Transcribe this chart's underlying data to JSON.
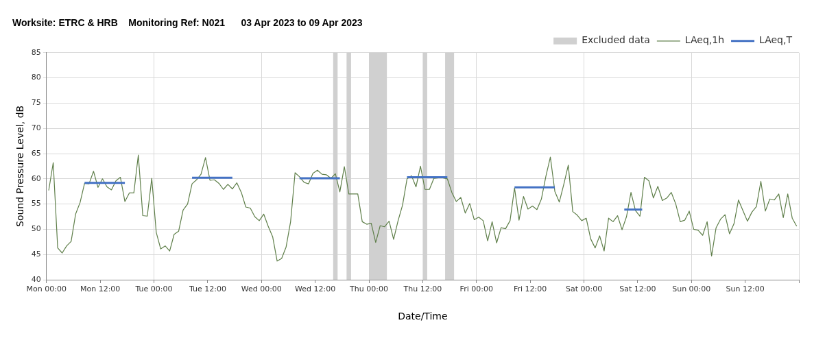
{
  "chart_data": {
    "type": "line",
    "title": "Worksite: ETRC & HRB    Monitoring Ref: N021      03 Apr 2023 to 09 Apr 2023",
    "xlabel": "Date/Time",
    "ylabel": "Sound Pressure Level, dB",
    "xlim": [
      "2023-04-03T00:00",
      "2023-04-10T00:00"
    ],
    "xticks": [
      {
        "value": "2023-04-03T00:00",
        "label": "Mon 00:00"
      },
      {
        "value": "2023-04-03T12:00",
        "label": "Mon 12:00"
      },
      {
        "value": "2023-04-04T00:00",
        "label": "Tue 00:00"
      },
      {
        "value": "2023-04-04T12:00",
        "label": "Tue 12:00"
      },
      {
        "value": "2023-04-05T00:00",
        "label": "Wed 00:00"
      },
      {
        "value": "2023-04-05T12:00",
        "label": "Wed 12:00"
      },
      {
        "value": "2023-04-06T00:00",
        "label": "Thu 00:00"
      },
      {
        "value": "2023-04-06T12:00",
        "label": "Thu 12:00"
      },
      {
        "value": "2023-04-07T00:00",
        "label": "Fri 00:00"
      },
      {
        "value": "2023-04-07T12:00",
        "label": "Fri 12:00"
      },
      {
        "value": "2023-04-08T00:00",
        "label": "Sat 00:00"
      },
      {
        "value": "2023-04-08T12:00",
        "label": "Sat 12:00"
      },
      {
        "value": "2023-04-09T00:00",
        "label": "Sun 00:00"
      },
      {
        "value": "2023-04-09T12:00",
        "label": "Sun 12:00"
      },
      {
        "value": "2023-04-10T00:00",
        "label": null
      }
    ],
    "ylim": [
      40,
      85
    ],
    "yticks": [
      40,
      45,
      50,
      55,
      60,
      65,
      70,
      75,
      80,
      85
    ],
    "grid": true,
    "legend": "top right",
    "marker": "none",
    "line_style": "solid",
    "bands": [
      {
        "axis": "x",
        "from": "2023-04-05T16:00",
        "to": "2023-04-05T17:00",
        "color": "#d0d0d0",
        "label": "Excluded data"
      },
      {
        "axis": "x",
        "from": "2023-04-05T19:00",
        "to": "2023-04-05T20:00",
        "color": "#d0d0d0"
      },
      {
        "axis": "x",
        "from": "2023-04-06T00:00",
        "to": "2023-04-06T04:00",
        "color": "#d0d0d0"
      },
      {
        "axis": "x",
        "from": "2023-04-06T12:00",
        "to": "2023-04-06T13:00",
        "color": "#d0d0d0"
      },
      {
        "axis": "x",
        "from": "2023-04-06T17:00",
        "to": "2023-04-06T19:00",
        "color": "#d0d0d0"
      }
    ],
    "series": [
      {
        "name": "LAeq,1h",
        "type": "line",
        "color": "#5f7f4a",
        "x": [
          "2023-04-03T00:30",
          "2023-04-03T01:30",
          "2023-04-03T02:30",
          "2023-04-03T03:30",
          "2023-04-03T04:30",
          "2023-04-03T05:30",
          "2023-04-03T06:30",
          "2023-04-03T07:30",
          "2023-04-03T08:30",
          "2023-04-03T09:30",
          "2023-04-03T10:30",
          "2023-04-03T11:30",
          "2023-04-03T12:30",
          "2023-04-03T13:30",
          "2023-04-03T14:30",
          "2023-04-03T15:30",
          "2023-04-03T16:30",
          "2023-04-03T17:30",
          "2023-04-03T18:30",
          "2023-04-03T19:30",
          "2023-04-03T20:30",
          "2023-04-03T21:30",
          "2023-04-03T22:30",
          "2023-04-03T23:30",
          "2023-04-04T00:30",
          "2023-04-04T01:30",
          "2023-04-04T02:30",
          "2023-04-04T03:30",
          "2023-04-04T04:30",
          "2023-04-04T05:30",
          "2023-04-04T06:30",
          "2023-04-04T07:30",
          "2023-04-04T08:30",
          "2023-04-04T09:30",
          "2023-04-04T10:30",
          "2023-04-04T11:30",
          "2023-04-04T12:30",
          "2023-04-04T13:30",
          "2023-04-04T14:30",
          "2023-04-04T15:30",
          "2023-04-04T16:30",
          "2023-04-04T17:30",
          "2023-04-04T18:30",
          "2023-04-04T19:30",
          "2023-04-04T20:30",
          "2023-04-04T21:30",
          "2023-04-04T22:30",
          "2023-04-04T23:30",
          "2023-04-05T00:30",
          "2023-04-05T01:30",
          "2023-04-05T02:30",
          "2023-04-05T03:30",
          "2023-04-05T04:30",
          "2023-04-05T05:30",
          "2023-04-05T06:30",
          "2023-04-05T07:30",
          "2023-04-05T08:30",
          "2023-04-05T09:30",
          "2023-04-05T10:30",
          "2023-04-05T11:30",
          "2023-04-05T12:30",
          "2023-04-05T13:30",
          "2023-04-05T14:30",
          "2023-04-05T15:30",
          "2023-04-05T16:30",
          "2023-04-05T17:30",
          "2023-04-05T18:30",
          "2023-04-05T19:30",
          "2023-04-05T20:30",
          "2023-04-05T21:30",
          "2023-04-05T22:30",
          "2023-04-05T23:30",
          "2023-04-06T00:30",
          "2023-04-06T01:30",
          "2023-04-06T02:30",
          "2023-04-06T03:30",
          "2023-04-06T04:30",
          "2023-04-06T05:30",
          "2023-04-06T06:30",
          "2023-04-06T07:30",
          "2023-04-06T08:30",
          "2023-04-06T09:30",
          "2023-04-06T10:30",
          "2023-04-06T11:30",
          "2023-04-06T12:30",
          "2023-04-06T13:30",
          "2023-04-06T14:30",
          "2023-04-06T15:30",
          "2023-04-06T16:30",
          "2023-04-06T17:30",
          "2023-04-06T18:30",
          "2023-04-06T19:30",
          "2023-04-06T20:30",
          "2023-04-06T21:30",
          "2023-04-06T22:30",
          "2023-04-06T23:30",
          "2023-04-07T00:30",
          "2023-04-07T01:30",
          "2023-04-07T02:30",
          "2023-04-07T03:30",
          "2023-04-07T04:30",
          "2023-04-07T05:30",
          "2023-04-07T06:30",
          "2023-04-07T07:30",
          "2023-04-07T08:30",
          "2023-04-07T09:30",
          "2023-04-07T10:30",
          "2023-04-07T11:30",
          "2023-04-07T12:30",
          "2023-04-07T13:30",
          "2023-04-07T14:30",
          "2023-04-07T15:30",
          "2023-04-07T16:30",
          "2023-04-07T17:30",
          "2023-04-07T18:30",
          "2023-04-07T19:30",
          "2023-04-07T20:30",
          "2023-04-07T21:30",
          "2023-04-07T22:30",
          "2023-04-07T23:30",
          "2023-04-08T00:30",
          "2023-04-08T01:30",
          "2023-04-08T02:30",
          "2023-04-08T03:30",
          "2023-04-08T04:30",
          "2023-04-08T05:30",
          "2023-04-08T06:30",
          "2023-04-08T07:30",
          "2023-04-08T08:30",
          "2023-04-08T09:30",
          "2023-04-08T10:30",
          "2023-04-08T11:30",
          "2023-04-08T12:30",
          "2023-04-08T13:30",
          "2023-04-08T14:30",
          "2023-04-08T15:30",
          "2023-04-08T16:30",
          "2023-04-08T17:30",
          "2023-04-08T18:30",
          "2023-04-08T19:30",
          "2023-04-08T20:30",
          "2023-04-08T21:30",
          "2023-04-08T22:30",
          "2023-04-08T23:30",
          "2023-04-09T00:30",
          "2023-04-09T01:30",
          "2023-04-09T02:30",
          "2023-04-09T03:30",
          "2023-04-09T04:30",
          "2023-04-09T05:30",
          "2023-04-09T06:30",
          "2023-04-09T07:30",
          "2023-04-09T08:30",
          "2023-04-09T09:30",
          "2023-04-09T10:30",
          "2023-04-09T11:30",
          "2023-04-09T12:30",
          "2023-04-09T13:30",
          "2023-04-09T14:30",
          "2023-04-09T15:30",
          "2023-04-09T16:30",
          "2023-04-09T17:30",
          "2023-04-09T18:30",
          "2023-04-09T19:30",
          "2023-04-09T20:30",
          "2023-04-09T21:30",
          "2023-04-09T22:30",
          "2023-04-09T23:30"
        ],
        "values": [
          57.7,
          63.2,
          46.3,
          45.3,
          46.7,
          47.6,
          53.0,
          55.3,
          59.1,
          59.0,
          61.5,
          58.3,
          60.0,
          58.4,
          57.8,
          59.6,
          60.3,
          55.5,
          57.2,
          57.2,
          64.7,
          52.7,
          52.6,
          60.1,
          49.4,
          46.1,
          46.7,
          45.7,
          49.0,
          49.6,
          53.8,
          55.0,
          59.0,
          59.8,
          60.9,
          64.2,
          59.7,
          59.8,
          59.1,
          57.9,
          58.9,
          58.0,
          59.2,
          57.3,
          54.4,
          54.2,
          52.5,
          51.7,
          53.0,
          50.6,
          48.5,
          43.7,
          44.2,
          46.5,
          51.5,
          61.2,
          60.4,
          59.3,
          59.0,
          61.1,
          61.7,
          60.9,
          60.8,
          60.1,
          61.0,
          57.4,
          62.4,
          57.0,
          57.0,
          57.0,
          51.5,
          51.0,
          51.2,
          47.4,
          50.7,
          50.5,
          51.6,
          48.0,
          51.7,
          54.8,
          60.0,
          60.6,
          58.4,
          62.5,
          57.9,
          57.9,
          60.1,
          60.2,
          60.2,
          60.0,
          57.3,
          55.5,
          56.3,
          53.2,
          55.1,
          51.9,
          52.4,
          51.7,
          47.7,
          51.5,
          47.3,
          50.3,
          50.1,
          51.7,
          58.2,
          51.8,
          56.5,
          54.0,
          54.6,
          53.9,
          56.0,
          60.5,
          64.3,
          57.5,
          55.4,
          58.9,
          62.7,
          53.5,
          52.8,
          51.7,
          52.2,
          48.1,
          46.3,
          48.7,
          45.7,
          52.2,
          51.5,
          52.7,
          49.9,
          52.5,
          57.3,
          53.7,
          52.6,
          60.3,
          59.6,
          56.2,
          58.5,
          55.7,
          56.2,
          57.3,
          55.0,
          51.5,
          51.8,
          53.6,
          50.0,
          49.8,
          48.8,
          51.5,
          44.7,
          50.3,
          52.0,
          52.9,
          49.1,
          51.1,
          55.8,
          53.7,
          51.6,
          53.4,
          54.5,
          59.5,
          53.6,
          56.0,
          55.8,
          57.0,
          52.3,
          57.0,
          52.2,
          50.6
        ]
      },
      {
        "name": "LAeq,T",
        "type": "line",
        "color": "#4472c4",
        "x": [
          "2023-04-03T08:30",
          "2023-04-03T17:30"
        ],
        "values": [
          59.2,
          59.2
        ]
      },
      {
        "type": "line",
        "color": "#4472c4",
        "x": [
          "2023-04-04T08:30",
          "2023-04-04T17:30"
        ],
        "values": [
          60.2,
          60.2
        ]
      },
      {
        "type": "line",
        "color": "#4472c4",
        "x": [
          "2023-04-05T08:30",
          "2023-04-05T17:30"
        ],
        "values": [
          60.1,
          60.1
        ]
      },
      {
        "type": "line",
        "color": "#4472c4",
        "x": [
          "2023-04-06T08:30",
          "2023-04-06T17:30"
        ],
        "values": [
          60.3,
          60.3
        ]
      },
      {
        "type": "line",
        "color": "#4472c4",
        "x": [
          "2023-04-07T08:30",
          "2023-04-07T17:30"
        ],
        "values": [
          58.3,
          58.3
        ]
      },
      {
        "type": "line",
        "color": "#4472c4",
        "x": [
          "2023-04-08T09:00",
          "2023-04-08T13:00"
        ],
        "values": [
          53.9,
          53.9
        ]
      }
    ]
  }
}
